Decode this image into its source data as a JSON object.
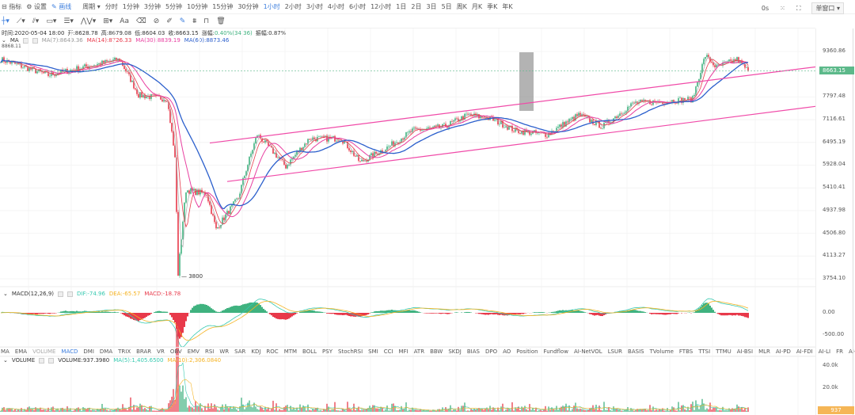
{
  "toolbar": {
    "indicators": "指标",
    "settings": "设置",
    "draw": "画线",
    "period": "周期",
    "periods": [
      "分时",
      "1分钟",
      "3分钟",
      "5分钟",
      "10分钟",
      "15分钟",
      "30分钟",
      "1小时",
      "2小时",
      "3小时",
      "4小时",
      "6小时",
      "12小时",
      "1日",
      "2日",
      "3日",
      "5日",
      "周K",
      "月K",
      "季K",
      "年K"
    ],
    "active_period": "1小时",
    "countdown": "0s",
    "window_mode": "单窗口"
  },
  "info": {
    "time": "时间:2020-05-04 18:00",
    "open": "开:8628.78",
    "high": "高:8679.08",
    "low": "低:8604.03",
    "close": "收:8663.15",
    "change_label": "涨幅:",
    "change": "0.40%(34.36)",
    "amp": "振幅:0.87%"
  },
  "ma_legend": {
    "name": "MA",
    "ma7": "MA(7):8649.36",
    "ma14": "MA(14):8726.33",
    "ma30": "MA(30):8839.19",
    "ma60": "MA(60):8873.46",
    "edge_label": "8868.11"
  },
  "macd_legend": {
    "name": "MACD(12,26,9)",
    "dif": "DIF:-74.96",
    "dea": "DEA:-65.57",
    "macd": "MACD:-18.78"
  },
  "indicator_tabs": [
    "MA",
    "EMA",
    "VOLUME",
    "MACD",
    "DMI",
    "DMA",
    "TRIX",
    "BRAR",
    "VR",
    "OBV",
    "EMV",
    "RSI",
    "WR",
    "SAR",
    "KDJ",
    "ROC",
    "MTM",
    "BOLL",
    "PSY",
    "StochRSI",
    "SMI",
    "CCI",
    "MFI",
    "ATR",
    "BBW",
    "SKDJ",
    "BIAS",
    "DPO",
    "AO",
    "Position",
    "Fundflow",
    "AI-NetVOL",
    "LSUR",
    "BASIS",
    "TVolume",
    "FTBS",
    "TTSI",
    "TTMU",
    "AI-BSI",
    "MLR",
    "AI-PD",
    "AI-FDI",
    "AI-LI",
    "FR",
    "AI-BST"
  ],
  "active_indicators": [
    "MACD"
  ],
  "vol_legend": {
    "name": "VOLUME",
    "volume": "VOLUME:937.3980",
    "ma5": "MA(5):1,405.6500",
    "ma10": "MA(10):2,306.0840"
  },
  "axis": {
    "price_ticks": [
      "9360.86",
      "7797.48",
      "7116.61",
      "6495.19",
      "5928.04",
      "5410.41",
      "4937.98",
      "4506.80",
      "4113.27",
      "3754.10"
    ],
    "last_price": "8663.15",
    "macd_ticks": [
      "0.00",
      "-500.00"
    ],
    "vol_ticks": [
      "40.0k",
      "20.0k"
    ],
    "last_volume": "937"
  },
  "low_marker": "3800",
  "colors": {
    "up": "#3fb27f",
    "down": "#e8394a",
    "ma7": "#aaaaaa",
    "ma14": "#e8394a",
    "ma30": "#e83fa0",
    "ma60": "#2b5fcc",
    "channel": "#f04aa8",
    "accent": "#3b7ddd"
  },
  "chart_data": {
    "type": "candlestick",
    "scale": "log",
    "ylim": [
      3754.1,
      9360.86
    ],
    "close_path": [
      [
        0,
        9067
      ],
      [
        30,
        8509
      ],
      [
        75,
        9067
      ],
      [
        87,
        7856
      ],
      [
        105,
        7732
      ],
      [
        110,
        6087
      ],
      [
        112,
        3800
      ],
      [
        117,
        5363
      ],
      [
        130,
        5279
      ],
      [
        136,
        4575
      ],
      [
        150,
        5195
      ],
      [
        162,
        6702
      ],
      [
        180,
        5897
      ],
      [
        195,
        6597
      ],
      [
        215,
        6597
      ],
      [
        227,
        5993
      ],
      [
        245,
        6386
      ],
      [
        260,
        6808
      ],
      [
        280,
        6918
      ],
      [
        295,
        7253
      ],
      [
        310,
        7139
      ],
      [
        325,
        6808
      ],
      [
        345,
        6702
      ],
      [
        365,
        7253
      ],
      [
        380,
        6918
      ],
      [
        400,
        7611
      ],
      [
        420,
        7660
      ],
      [
        437,
        7732
      ],
      [
        445,
        9213
      ],
      [
        452,
        8779
      ],
      [
        465,
        9067
      ],
      [
        472,
        8663
      ]
    ],
    "trendlines": [
      {
        "from": [
          132,
          6480
        ],
        "to": [
          515,
          8800
        ]
      },
      {
        "from": [
          143,
          5550
        ],
        "to": [
          515,
          7510
        ]
      }
    ],
    "ma_periods": [
      7,
      14,
      30,
      60
    ]
  }
}
